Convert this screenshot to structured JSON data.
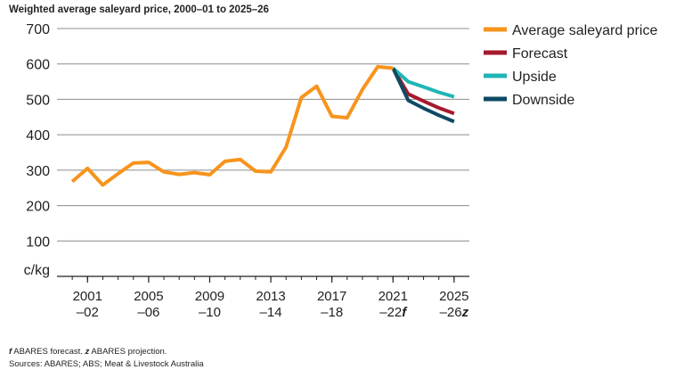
{
  "chart_data": {
    "type": "line",
    "title": "Weighted average saleyard price, 2000–01 to 2025–26",
    "ylabel": "c/kg",
    "xlabel": "",
    "ylim": [
      0,
      700
    ],
    "yticks": [
      100,
      200,
      300,
      400,
      500,
      600,
      700
    ],
    "xlim": [
      1999,
      2026
    ],
    "xticks": [
      {
        "x": 2001,
        "line1": "2001",
        "line2": "–02"
      },
      {
        "x": 2005,
        "line1": "2005",
        "line2": "–06"
      },
      {
        "x": 2009,
        "line1": "2009",
        "line2": "–10"
      },
      {
        "x": 2013,
        "line1": "2013",
        "line2": "–14"
      },
      {
        "x": 2017,
        "line1": "2017",
        "line2": "–18"
      },
      {
        "x": 2021,
        "line1": "2021",
        "line2": "–22f"
      },
      {
        "x": 2025,
        "line1": "2025",
        "line2": "–26z"
      }
    ],
    "grid": true,
    "legend_position": "top-right",
    "series": [
      {
        "name": "Average saleyard price",
        "color": "#f7941d",
        "x": [
          2000,
          2001,
          2002,
          2003,
          2004,
          2005,
          2006,
          2007,
          2008,
          2009,
          2010,
          2011,
          2012,
          2013,
          2014,
          2015,
          2016,
          2017,
          2018,
          2019,
          2020,
          2021
        ],
        "values": [
          268,
          305,
          258,
          290,
          320,
          322,
          295,
          288,
          293,
          287,
          325,
          330,
          297,
          295,
          365,
          505,
          537,
          452,
          448,
          528,
          592,
          588
        ]
      },
      {
        "name": "Forecast",
        "color": "#a6192e",
        "x": [
          2021,
          2022,
          2023,
          2024,
          2025
        ],
        "values": [
          588,
          515,
          495,
          476,
          460
        ]
      },
      {
        "name": "Upside",
        "color": "#1fb5b5",
        "x": [
          2021,
          2022,
          2023,
          2024,
          2025
        ],
        "values": [
          588,
          550,
          535,
          520,
          507
        ]
      },
      {
        "name": "Downside",
        "color": "#0d4a63",
        "x": [
          2021,
          2022,
          2023,
          2024,
          2025
        ],
        "values": [
          588,
          497,
          475,
          455,
          437
        ]
      }
    ]
  },
  "footnotes": {
    "line1_f": "f",
    "line1_f_text": " ABARES forecast. ",
    "line1_z": "z",
    "line1_z_text": " ABARES projection.",
    "line2": "Sources: ABARES; ABS; Meat & Livestock Australia"
  }
}
